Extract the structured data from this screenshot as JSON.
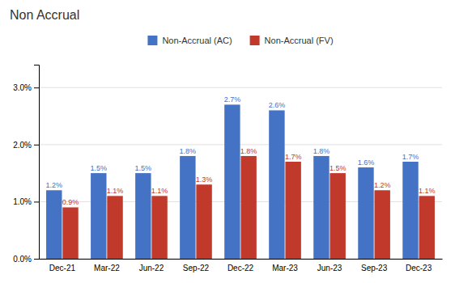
{
  "chart_data": {
    "type": "bar",
    "title": "Non Accrual",
    "categories": [
      "Dec-21",
      "Mar-22",
      "Jun-22",
      "Sep-22",
      "Dec-22",
      "Mar-23",
      "Jun-23",
      "Sep-23",
      "Dec-23"
    ],
    "series": [
      {
        "name": "Non-Accrual (AC)",
        "color": "#4472C4",
        "values": [
          1.2,
          1.5,
          1.5,
          1.8,
          2.7,
          2.6,
          1.8,
          1.6,
          1.7
        ],
        "value_labels": [
          "1.2%",
          "1.5%",
          "1.5%",
          "1.8%",
          "2.7%",
          "2.6%",
          "1.8%",
          "1.6%",
          "1.7%"
        ]
      },
      {
        "name": "Non-Accrual (FV)",
        "color": "#C0392B",
        "values": [
          0.9,
          1.1,
          1.1,
          1.3,
          1.8,
          1.7,
          1.5,
          1.2,
          1.1
        ],
        "value_labels": [
          "0.9%",
          "1.1%",
          "1.1%",
          "1.3%",
          "1.8%",
          "1.7%",
          "1.5%",
          "1.2%",
          "1.1%"
        ]
      }
    ],
    "ylim": [
      0,
      3.4
    ],
    "yticks": [
      {
        "value": 0.0,
        "label": "0.0%"
      },
      {
        "value": 1.0,
        "label": "1.0%"
      },
      {
        "value": 2.0,
        "label": "2.0%"
      },
      {
        "value": 3.0,
        "label": "3.0%"
      }
    ],
    "grid": true,
    "legend": "top",
    "data_labels": true
  }
}
